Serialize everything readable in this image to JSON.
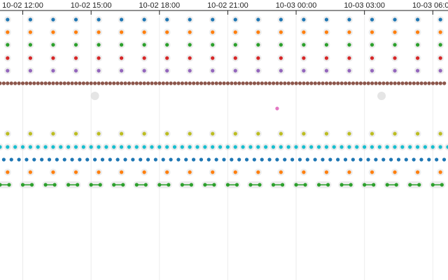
{
  "chart_data": {
    "type": "scatter",
    "title": "",
    "xlabel": "",
    "ylabel": "",
    "x_ticks": [
      "10-02 12:00",
      "10-02 15:00",
      "10-02 18:00",
      "10-02 21:00",
      "10-03 00:00",
      "10-03 03:00",
      "10-03 06:00"
    ],
    "x_range": [
      "2024-10-02 11:00",
      "2024-10-03 06:40"
    ],
    "grid": true,
    "legend": "none",
    "row_order": [
      "row-1",
      "row-2",
      "row-3",
      "row-4",
      "row-5",
      "row-6",
      "row-7",
      "row-8",
      "row-9",
      "row-10",
      "row-11",
      "row-12"
    ],
    "halo_color": "#dedede",
    "series": [
      {
        "row": "row-1",
        "color": "#1f77b4",
        "pattern": {
          "start": "10-02 11:20",
          "every_hours": 1.0
        },
        "halo": true
      },
      {
        "row": "row-2",
        "color": "#ff7f0e",
        "pattern": {
          "start": "10-02 11:20",
          "every_hours": 1.0
        },
        "halo": true
      },
      {
        "row": "row-3",
        "color": "#2ca02c",
        "pattern": {
          "start": "10-02 11:20",
          "every_hours": 1.0
        },
        "halo": true
      },
      {
        "row": "row-4",
        "color": "#d62728",
        "pattern": {
          "start": "10-02 11:20",
          "every_hours": 1.0
        },
        "halo": true
      },
      {
        "row": "row-5",
        "color": "#9467bd",
        "pattern": {
          "start": "10-02 11:20",
          "every_hours": 1.0
        },
        "halo": true
      },
      {
        "row": "row-6",
        "color": "#8c564b",
        "pattern": {
          "start": "10-02 11:00",
          "every_hours": 0.1667
        },
        "halo": false
      },
      {
        "row": "row-7",
        "color": "#e377c2",
        "points": [
          "10-02 23:10"
        ],
        "halo": false
      },
      {
        "row": "row-8",
        "color": "#bcbd22",
        "pattern": {
          "start": "10-02 11:20",
          "every_hours": 1.0
        },
        "halo": true
      },
      {
        "row": "row-9",
        "color": "#17becf",
        "pattern": {
          "start": "10-02 11:00",
          "every_hours": 0.3333
        },
        "halo": true
      },
      {
        "row": "row-10",
        "color": "#1f77b4",
        "pattern": {
          "start": "10-02 11:10",
          "every_hours": 0.3333
        },
        "halo": false
      },
      {
        "row": "row-11",
        "color": "#ff7f0e",
        "pattern": {
          "start": "10-02 11:20",
          "every_hours": 1.0
        },
        "halo": true
      },
      {
        "row": "row-12",
        "color": "#2ca02c",
        "pattern": {
          "start": "10-02 11:00",
          "every_hours": 1.0,
          "pair_offset_hours": 0.4
        },
        "halo": true
      }
    ],
    "halo_only_points": [
      {
        "row": "row-7",
        "x": "10-02 15:10"
      },
      {
        "row": "row-7",
        "x": "10-03 03:45"
      }
    ]
  }
}
